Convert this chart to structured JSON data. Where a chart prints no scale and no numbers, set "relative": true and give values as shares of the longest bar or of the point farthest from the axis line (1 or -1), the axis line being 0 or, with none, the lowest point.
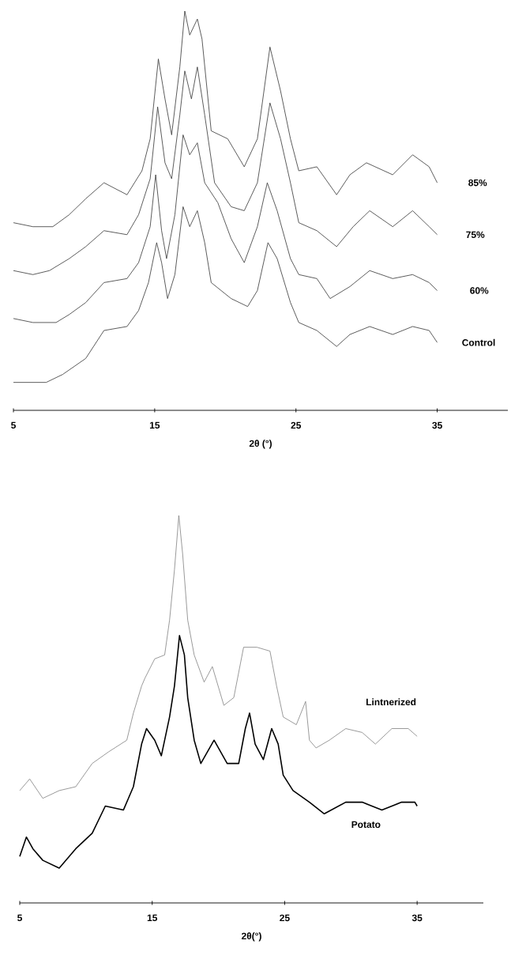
{
  "chart_data": [
    {
      "type": "line",
      "relative": true,
      "xlabel": "2θ (°)",
      "xlim": [
        5,
        40
      ],
      "xticks": [
        5,
        15,
        25,
        35
      ],
      "series": [
        {
          "name": "85%",
          "color": "#333333",
          "x": [
            5,
            6.38,
            7.79,
            8.95,
            10.12,
            11.41,
            13.04,
            14.1,
            14.68,
            15.26,
            15.73,
            16.2,
            16.78,
            17.13,
            17.48,
            18.02,
            18.35,
            19.0,
            20.17,
            21.34,
            22.27,
            23.16,
            23.91,
            24.61,
            25.2,
            26.48,
            27.88,
            28.82,
            29.99,
            31.85,
            33.26,
            34.43,
            35
          ],
          "values": [
            0.47,
            0.46,
            0.46,
            0.49,
            0.53,
            0.57,
            0.54,
            0.6,
            0.68,
            0.88,
            0.78,
            0.69,
            0.86,
            1.0,
            0.94,
            0.98,
            0.93,
            0.7,
            0.68,
            0.61,
            0.68,
            0.91,
            0.8,
            0.68,
            0.6,
            0.61,
            0.54,
            0.59,
            0.62,
            0.59,
            0.64,
            0.61,
            0.57
          ]
        },
        {
          "name": "75%",
          "color": "#333333",
          "x": [
            5,
            6.38,
            7.55,
            8.95,
            10.12,
            11.41,
            13.04,
            13.86,
            14.68,
            15.21,
            15.73,
            16.2,
            16.78,
            17.13,
            17.6,
            18.02,
            18.54,
            19.24,
            20.41,
            21.34,
            22.27,
            23.16,
            23.91,
            24.61,
            25.2,
            26.48,
            27.88,
            29.05,
            30.22,
            31.85,
            33.26,
            34.43,
            35
          ],
          "values": [
            0.35,
            0.34,
            0.35,
            0.38,
            0.41,
            0.45,
            0.44,
            0.49,
            0.58,
            0.76,
            0.62,
            0.58,
            0.74,
            0.85,
            0.78,
            0.86,
            0.74,
            0.57,
            0.51,
            0.5,
            0.57,
            0.77,
            0.68,
            0.57,
            0.47,
            0.45,
            0.41,
            0.46,
            0.5,
            0.46,
            0.5,
            0.46,
            0.44
          ]
        },
        {
          "name": "60%",
          "color": "#333333",
          "x": [
            5,
            6.38,
            8.02,
            8.95,
            10.12,
            11.41,
            13.04,
            13.86,
            14.68,
            15.07,
            15.49,
            15.84,
            16.43,
            17.01,
            17.48,
            18.02,
            18.54,
            19.47,
            20.41,
            21.34,
            22.27,
            22.97,
            23.67,
            24.61,
            25.2,
            26.48,
            27.42,
            28.82,
            30.22,
            31.85,
            33.26,
            34.43,
            35
          ],
          "values": [
            0.23,
            0.22,
            0.22,
            0.24,
            0.27,
            0.32,
            0.33,
            0.37,
            0.46,
            0.59,
            0.45,
            0.38,
            0.49,
            0.69,
            0.64,
            0.67,
            0.57,
            0.52,
            0.43,
            0.37,
            0.46,
            0.57,
            0.5,
            0.38,
            0.34,
            0.33,
            0.28,
            0.31,
            0.35,
            0.33,
            0.34,
            0.32,
            0.3
          ]
        },
        {
          "name": "Control",
          "color": "#333333",
          "x": [
            5,
            6.38,
            7.32,
            8.49,
            10.12,
            11.41,
            13.04,
            13.86,
            14.56,
            15.14,
            15.49,
            15.91,
            16.43,
            17.01,
            17.48,
            18.02,
            18.54,
            19.0,
            20.41,
            21.58,
            22.27,
            23.02,
            23.67,
            24.61,
            25.2,
            26.48,
            27.88,
            28.82,
            30.22,
            31.85,
            33.26,
            34.43,
            35
          ],
          "values": [
            0.07,
            0.07,
            0.07,
            0.09,
            0.13,
            0.2,
            0.21,
            0.25,
            0.32,
            0.42,
            0.37,
            0.28,
            0.34,
            0.51,
            0.46,
            0.5,
            0.42,
            0.32,
            0.28,
            0.26,
            0.3,
            0.42,
            0.38,
            0.27,
            0.22,
            0.2,
            0.16,
            0.19,
            0.21,
            0.19,
            0.21,
            0.2,
            0.17
          ]
        }
      ]
    },
    {
      "type": "line",
      "relative": true,
      "xlabel": "2θ(°)",
      "xlim": [
        5,
        40
      ],
      "xticks": [
        5,
        15,
        25,
        35
      ],
      "series": [
        {
          "name": "Lintnerized",
          "color": "#808080",
          "x": [
            5,
            5.75,
            6.74,
            7.98,
            9.23,
            10.47,
            11.71,
            13.08,
            13.58,
            14.2,
            14.45,
            15.19,
            15.94,
            16.31,
            16.68,
            17.01,
            17.3,
            17.68,
            18.17,
            18.92,
            19.54,
            20.41,
            21.16,
            21.9,
            22.9,
            23.89,
            24.39,
            24.89,
            25.88,
            26.58,
            26.87,
            27.37,
            28.37,
            29.61,
            30.85,
            31.85,
            33.09,
            34.33,
            35
          ],
          "values": [
            0.29,
            0.32,
            0.27,
            0.29,
            0.3,
            0.36,
            0.39,
            0.42,
            0.49,
            0.56,
            0.58,
            0.63,
            0.64,
            0.73,
            0.86,
            1.0,
            0.9,
            0.73,
            0.64,
            0.57,
            0.61,
            0.51,
            0.53,
            0.66,
            0.66,
            0.65,
            0.56,
            0.48,
            0.46,
            0.52,
            0.42,
            0.4,
            0.42,
            0.45,
            0.44,
            0.41,
            0.45,
            0.45,
            0.43
          ]
        },
        {
          "name": "Potato",
          "color": "#000000",
          "x": [
            5,
            5.5,
            5.99,
            6.74,
            7.98,
            9.23,
            10.47,
            11.46,
            12.83,
            13.58,
            14.2,
            14.57,
            15.19,
            15.69,
            16.31,
            16.68,
            17.06,
            17.43,
            17.68,
            18.17,
            18.67,
            19.67,
            20.66,
            21.53,
            22.03,
            22.35,
            22.77,
            23.39,
            24.02,
            24.51,
            24.89,
            25.63,
            26.87,
            27.99,
            29.61,
            30.85,
            32.34,
            33.83,
            34.83,
            35
          ],
          "values": [
            0.12,
            0.17,
            0.14,
            0.11,
            0.09,
            0.14,
            0.18,
            0.25,
            0.24,
            0.3,
            0.41,
            0.45,
            0.42,
            0.38,
            0.48,
            0.56,
            0.69,
            0.64,
            0.53,
            0.42,
            0.36,
            0.42,
            0.36,
            0.36,
            0.45,
            0.49,
            0.41,
            0.37,
            0.45,
            0.41,
            0.33,
            0.29,
            0.26,
            0.23,
            0.26,
            0.26,
            0.24,
            0.26,
            0.26,
            0.25
          ]
        }
      ]
    }
  ]
}
